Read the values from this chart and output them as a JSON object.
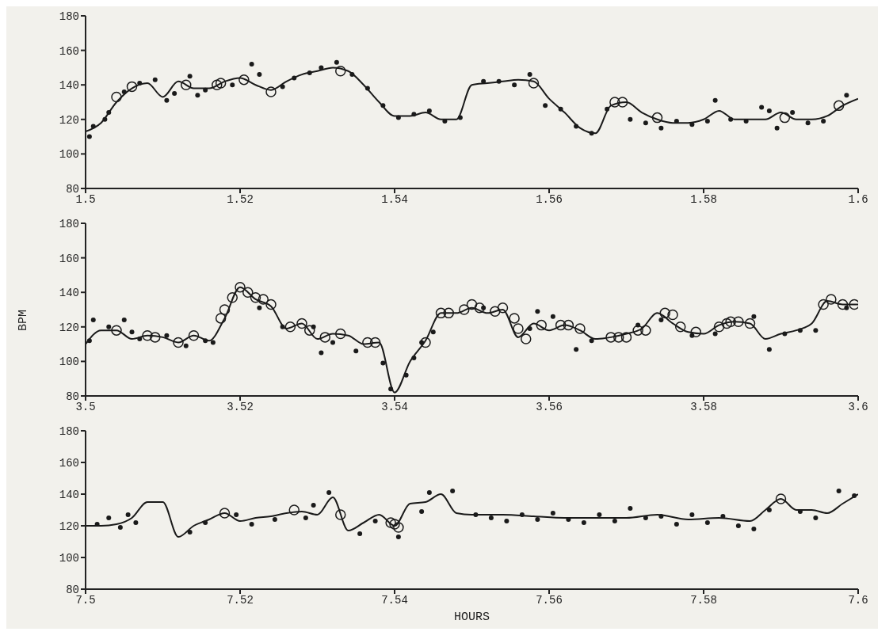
{
  "chart_data": [
    {
      "type": "line",
      "xlim": [
        1.5,
        1.6
      ],
      "xticks": [
        1.5,
        1.52,
        1.54,
        1.56,
        1.58,
        1.6
      ],
      "ylim": [
        80,
        180
      ],
      "yticks": [
        80,
        100,
        120,
        140,
        160,
        180
      ],
      "grid": false,
      "legend": false,
      "series": [
        {
          "type": "line",
          "color": "#1a1a1a",
          "marker": "none",
          "line_style": "solid",
          "x": [
            1.5,
            1.502,
            1.504,
            1.506,
            1.508,
            1.51,
            1.512,
            1.514,
            1.516,
            1.518,
            1.52,
            1.522,
            1.524,
            1.526,
            1.528,
            1.53,
            1.532,
            1.534,
            1.536,
            1.538,
            1.54,
            1.542,
            1.544,
            1.546,
            1.548,
            1.55,
            1.552,
            1.554,
            1.556,
            1.558,
            1.56,
            1.562,
            1.564,
            1.566,
            1.568,
            1.57,
            1.572,
            1.574,
            1.576,
            1.578,
            1.58,
            1.582,
            1.584,
            1.586,
            1.588,
            1.59,
            1.592,
            1.594,
            1.596,
            1.598,
            1.6
          ],
          "values": [
            113,
            118,
            130,
            138,
            141,
            133,
            142,
            138,
            138,
            142,
            144,
            140,
            137,
            142,
            146,
            148,
            150,
            148,
            140,
            130,
            122,
            122,
            124,
            120,
            120,
            140,
            141,
            142,
            143,
            142,
            132,
            124,
            115,
            112,
            128,
            130,
            124,
            120,
            118,
            118,
            120,
            125,
            120,
            120,
            120,
            124,
            120,
            120,
            122,
            128,
            132
          ]
        },
        {
          "type": "scatter",
          "color": "#1a1a1a",
          "marker": "circle",
          "x": [
            1.5005,
            1.501,
            1.5025,
            1.503,
            1.505,
            1.507,
            1.509,
            1.5105,
            1.5115,
            1.5135,
            1.5145,
            1.5155,
            1.519,
            1.5215,
            1.5225,
            1.5255,
            1.527,
            1.529,
            1.5305,
            1.5325,
            1.5345,
            1.5365,
            1.5385,
            1.5405,
            1.5425,
            1.5445,
            1.5465,
            1.5485,
            1.5515,
            1.5535,
            1.5555,
            1.5575,
            1.5595,
            1.5615,
            1.5635,
            1.5655,
            1.5675,
            1.5705,
            1.5725,
            1.5745,
            1.5765,
            1.5785,
            1.5805,
            1.5815,
            1.5835,
            1.5855,
            1.5875,
            1.5885,
            1.5895,
            1.5915,
            1.5935,
            1.5955,
            1.5985
          ],
          "values": [
            110,
            116,
            120,
            124,
            136,
            141,
            143,
            131,
            135,
            145,
            134,
            137,
            140,
            152,
            146,
            139,
            144,
            147,
            150,
            153,
            146,
            138,
            128,
            121,
            123,
            125,
            119,
            121,
            142,
            142,
            140,
            146,
            128,
            126,
            116,
            112,
            126,
            120,
            118,
            115,
            119,
            117,
            119,
            131,
            120,
            119,
            127,
            125,
            115,
            124,
            118,
            119,
            134
          ]
        },
        {
          "type": "scatter",
          "color": "#1a1a1a",
          "marker": "circle",
          "x": [
            1.504,
            1.506,
            1.513,
            1.517,
            1.5175,
            1.5205,
            1.524,
            1.533,
            1.558,
            1.5685,
            1.5695,
            1.574,
            1.5905,
            1.5975
          ],
          "values": [
            133,
            139,
            140,
            140,
            141,
            143,
            136,
            148,
            141,
            130,
            130,
            121,
            121,
            128
          ]
        }
      ]
    },
    {
      "type": "line",
      "ylabel": "BPM",
      "xlim": [
        3.5,
        3.6
      ],
      "xticks": [
        3.5,
        3.52,
        3.54,
        3.56,
        3.58,
        3.6
      ],
      "ylim": [
        80,
        180
      ],
      "yticks": [
        80,
        100,
        120,
        140,
        160,
        180
      ],
      "grid": false,
      "legend": false,
      "series": [
        {
          "type": "line",
          "color": "#1a1a1a",
          "marker": "none",
          "line_style": "solid",
          "x": [
            3.5,
            3.502,
            3.504,
            3.506,
            3.508,
            3.51,
            3.512,
            3.514,
            3.516,
            3.518,
            3.52,
            3.522,
            3.524,
            3.526,
            3.528,
            3.53,
            3.532,
            3.534,
            3.536,
            3.538,
            3.54,
            3.542,
            3.544,
            3.546,
            3.548,
            3.55,
            3.552,
            3.554,
            3.556,
            3.558,
            3.56,
            3.562,
            3.564,
            3.566,
            3.568,
            3.57,
            3.572,
            3.574,
            3.576,
            3.578,
            3.58,
            3.582,
            3.584,
            3.586,
            3.588,
            3.59,
            3.592,
            3.594,
            3.596,
            3.598,
            3.6
          ],
          "values": [
            110,
            118,
            118,
            113,
            115,
            114,
            111,
            115,
            112,
            125,
            143,
            136,
            132,
            119,
            122,
            113,
            116,
            115,
            110,
            111,
            82,
            100,
            112,
            128,
            128,
            131,
            128,
            130,
            114,
            122,
            118,
            121,
            118,
            113,
            114,
            116,
            119,
            128,
            122,
            117,
            116,
            121,
            123,
            122,
            113,
            116,
            118,
            122,
            135,
            133,
            133
          ]
        },
        {
          "type": "scatter",
          "color": "#1a1a1a",
          "marker": "circle",
          "x": [
            3.5005,
            3.501,
            3.503,
            3.505,
            3.506,
            3.507,
            3.5105,
            3.513,
            3.5155,
            3.5165,
            3.5225,
            3.5255,
            3.5295,
            3.5305,
            3.532,
            3.535,
            3.5385,
            3.5395,
            3.5415,
            3.5425,
            3.5435,
            3.545,
            3.5515,
            3.5575,
            3.5585,
            3.5605,
            3.5635,
            3.5655,
            3.5715,
            3.5745,
            3.5785,
            3.5815,
            3.5865,
            3.5885,
            3.5905,
            3.5925,
            3.5945,
            3.5985
          ],
          "values": [
            112,
            124,
            120,
            124,
            117,
            113,
            115,
            109,
            112,
            111,
            131,
            120,
            120,
            105,
            111,
            106,
            99,
            84,
            92,
            102,
            111,
            117,
            131,
            119,
            129,
            126,
            107,
            112,
            121,
            124,
            115,
            116,
            126,
            107,
            116,
            118,
            118,
            131
          ]
        },
        {
          "type": "scatter",
          "color": "#1a1a1a",
          "marker": "circle",
          "x": [
            3.504,
            3.508,
            3.509,
            3.512,
            3.514,
            3.5175,
            3.518,
            3.519,
            3.52,
            3.521,
            3.522,
            3.523,
            3.524,
            3.5265,
            3.528,
            3.529,
            3.531,
            3.533,
            3.5365,
            3.5375,
            3.544,
            3.546,
            3.547,
            3.549,
            3.55,
            3.551,
            3.553,
            3.554,
            3.5555,
            3.556,
            3.557,
            3.559,
            3.5615,
            3.5625,
            3.564,
            3.568,
            3.569,
            3.57,
            3.5715,
            3.5725,
            3.575,
            3.576,
            3.577,
            3.579,
            3.582,
            3.583,
            3.5835,
            3.5845,
            3.586,
            3.5955,
            3.5965,
            3.598,
            3.5995
          ],
          "values": [
            118,
            115,
            114,
            111,
            115,
            125,
            130,
            137,
            143,
            140,
            137,
            136,
            133,
            120,
            122,
            118,
            114,
            116,
            111,
            111,
            111,
            128,
            128,
            130,
            133,
            131,
            129,
            131,
            125,
            119,
            113,
            121,
            121,
            121,
            119,
            114,
            114,
            114,
            118,
            118,
            128,
            127,
            120,
            117,
            120,
            122,
            123,
            123,
            122,
            133,
            136,
            133,
            133
          ]
        }
      ]
    },
    {
      "type": "line",
      "xlabel": "HOURS",
      "xlim": [
        7.5,
        7.6
      ],
      "xticks": [
        7.5,
        7.52,
        7.54,
        7.56,
        7.58,
        7.6
      ],
      "ylim": [
        80,
        180
      ],
      "yticks": [
        80,
        100,
        120,
        140,
        160,
        180
      ],
      "grid": false,
      "legend": false,
      "series": [
        {
          "type": "line",
          "color": "#1a1a1a",
          "marker": "none",
          "line_style": "solid",
          "x": [
            7.5,
            7.502,
            7.504,
            7.506,
            7.508,
            7.51,
            7.512,
            7.514,
            7.516,
            7.518,
            7.52,
            7.522,
            7.524,
            7.526,
            7.528,
            7.53,
            7.532,
            7.534,
            7.536,
            7.538,
            7.54,
            7.542,
            7.544,
            7.546,
            7.548,
            7.55,
            7.554,
            7.558,
            7.562,
            7.566,
            7.57,
            7.574,
            7.578,
            7.582,
            7.586,
            7.588,
            7.59,
            7.592,
            7.594,
            7.596,
            7.598,
            7.6
          ],
          "values": [
            120,
            120,
            121,
            125,
            135,
            135,
            113,
            120,
            124,
            128,
            123,
            125,
            126,
            128,
            129,
            127,
            138,
            117,
            122,
            127,
            120,
            134,
            135,
            140,
            128,
            127,
            127,
            126,
            125,
            125,
            125,
            127,
            124,
            125,
            123,
            130,
            137,
            130,
            130,
            128,
            134,
            140
          ]
        },
        {
          "type": "scatter",
          "color": "#1a1a1a",
          "marker": "circle",
          "x": [
            7.5015,
            7.503,
            7.5045,
            7.5055,
            7.5065,
            7.5135,
            7.5155,
            7.5195,
            7.5215,
            7.5245,
            7.5285,
            7.5295,
            7.5315,
            7.5355,
            7.5375,
            7.5405,
            7.5435,
            7.5445,
            7.5475,
            7.5505,
            7.5525,
            7.5545,
            7.5565,
            7.5585,
            7.5605,
            7.5625,
            7.5645,
            7.5665,
            7.5685,
            7.5705,
            7.5725,
            7.5745,
            7.5765,
            7.5785,
            7.5805,
            7.5825,
            7.5845,
            7.5865,
            7.5885,
            7.5925,
            7.5945,
            7.5975,
            7.5995
          ],
          "values": [
            121,
            125,
            119,
            127,
            122,
            116,
            122,
            127,
            121,
            124,
            125,
            133,
            141,
            115,
            123,
            113,
            129,
            141,
            142,
            127,
            125,
            123,
            127,
            124,
            128,
            124,
            122,
            127,
            123,
            131,
            125,
            126,
            121,
            127,
            122,
            126,
            120,
            118,
            130,
            129,
            125,
            142,
            139
          ]
        },
        {
          "type": "scatter",
          "color": "#1a1a1a",
          "marker": "circle",
          "x": [
            7.518,
            7.527,
            7.533,
            7.5395,
            7.54,
            7.5405,
            7.59
          ],
          "values": [
            128,
            130,
            127,
            122,
            121,
            119,
            137
          ]
        }
      ]
    }
  ]
}
